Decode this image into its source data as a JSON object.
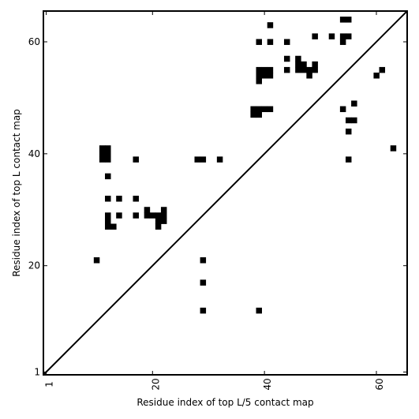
{
  "chart_data": {
    "type": "heatmap",
    "title": "",
    "xlabel": "Residue index of top L/5 contact map",
    "ylabel": "Residue index of top L contact map",
    "xlim": [
      0.5,
      65.5
    ],
    "ylim": [
      0.5,
      65.5
    ],
    "x_ticks": [
      1,
      20,
      40,
      60
    ],
    "y_ticks": [
      1,
      20,
      40,
      60
    ],
    "x_tick_labels": [
      "1",
      "20",
      "40",
      "60"
    ],
    "y_tick_labels": [
      "1",
      "20",
      "40",
      "60"
    ],
    "grid": false,
    "diagonal": true,
    "cell_color": "#000000",
    "background_color": "#ffffff",
    "cells": [
      [
        10,
        21
      ],
      [
        11,
        39
      ],
      [
        11,
        40
      ],
      [
        11,
        41
      ],
      [
        12,
        39
      ],
      [
        12,
        40
      ],
      [
        12,
        41
      ],
      [
        12,
        36
      ],
      [
        12,
        32
      ],
      [
        14,
        32
      ],
      [
        17,
        32
      ],
      [
        12,
        27
      ],
      [
        12,
        28
      ],
      [
        12,
        29
      ],
      [
        13,
        27
      ],
      [
        14,
        29
      ],
      [
        17,
        29
      ],
      [
        17,
        39
      ],
      [
        19,
        29
      ],
      [
        19,
        30
      ],
      [
        20,
        29
      ],
      [
        21,
        27
      ],
      [
        21,
        28
      ],
      [
        21,
        29
      ],
      [
        22,
        28
      ],
      [
        22,
        29
      ],
      [
        22,
        30
      ],
      [
        28,
        39
      ],
      [
        29,
        39
      ],
      [
        32,
        39
      ],
      [
        29,
        21
      ],
      [
        29,
        17
      ],
      [
        29,
        12
      ],
      [
        39,
        12
      ],
      [
        38,
        47
      ],
      [
        38,
        48
      ],
      [
        39,
        47
      ],
      [
        39,
        48
      ],
      [
        40,
        48
      ],
      [
        41,
        48
      ],
      [
        39,
        53
      ],
      [
        39,
        54
      ],
      [
        39,
        55
      ],
      [
        40,
        54
      ],
      [
        40,
        55
      ],
      [
        41,
        54
      ],
      [
        41,
        55
      ],
      [
        39,
        60
      ],
      [
        41,
        60
      ],
      [
        41,
        63
      ],
      [
        44,
        60
      ],
      [
        44,
        57
      ],
      [
        44,
        55
      ],
      [
        46,
        55
      ],
      [
        46,
        56
      ],
      [
        46,
        57
      ],
      [
        47,
        55
      ],
      [
        47,
        56
      ],
      [
        48,
        54
      ],
      [
        48,
        55
      ],
      [
        49,
        55
      ],
      [
        49,
        56
      ],
      [
        49,
        61
      ],
      [
        52,
        61
      ],
      [
        54,
        60
      ],
      [
        54,
        61
      ],
      [
        55,
        61
      ],
      [
        54,
        64
      ],
      [
        55,
        64
      ],
      [
        54,
        48
      ],
      [
        56,
        49
      ],
      [
        55,
        46
      ],
      [
        56,
        46
      ],
      [
        55,
        44
      ],
      [
        55,
        39
      ],
      [
        60,
        54
      ],
      [
        61,
        55
      ],
      [
        63,
        41
      ]
    ]
  }
}
